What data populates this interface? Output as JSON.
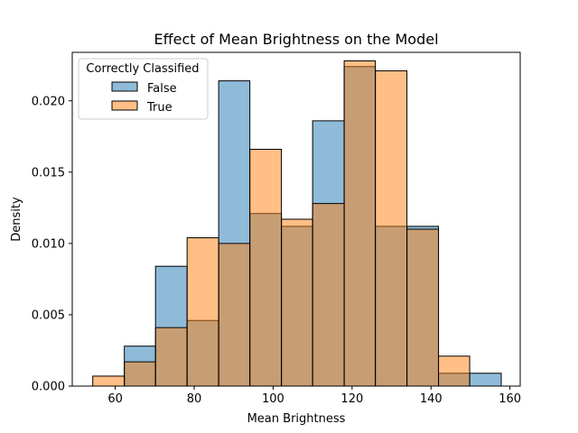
{
  "chart_data": {
    "type": "bar",
    "title": "Effect of Mean Brightness on the Model",
    "xlabel": "Mean Brightness",
    "ylabel": "Density",
    "xlim": [
      49.1,
      162.6
    ],
    "ylim": [
      0,
      0.0234
    ],
    "xticks": [
      60,
      80,
      100,
      120,
      140,
      160
    ],
    "yticks": [
      0.0,
      0.005,
      0.01,
      0.015,
      0.02
    ],
    "ytick_labels": [
      "0.000",
      "0.005",
      "0.010",
      "0.015",
      "0.020"
    ],
    "bin_edges": [
      54.3,
      62.3,
      70.2,
      78.2,
      86.2,
      94.1,
      102.1,
      110.0,
      118.0,
      125.9,
      133.9,
      141.9,
      149.8,
      157.8
    ],
    "grid": false,
    "legend": {
      "title": "Correctly Classified",
      "position": "upper-left"
    },
    "series": [
      {
        "name": "False",
        "color": "#1f77b4",
        "values": [
          0.0,
          0.0028,
          0.0084,
          0.0046,
          0.0214,
          0.0121,
          0.0112,
          0.0186,
          0.0224,
          0.0112,
          0.0112,
          0.0009,
          0.0009
        ]
      },
      {
        "name": "True",
        "color": "#ff7f0e",
        "values": [
          0.0007,
          0.0017,
          0.0041,
          0.0104,
          0.01,
          0.0166,
          0.0117,
          0.0128,
          0.0228,
          0.0221,
          0.011,
          0.0021,
          0.0
        ]
      }
    ]
  }
}
